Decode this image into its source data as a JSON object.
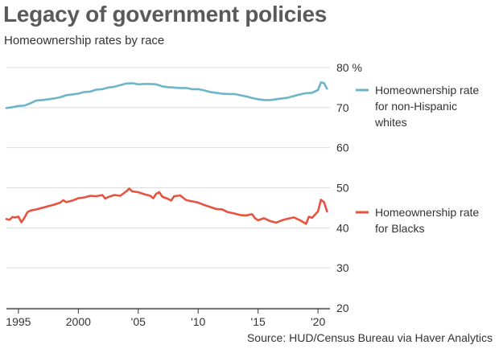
{
  "title": "Legacy of government policies",
  "subtitle": "Homeownership rates by race",
  "source": "Source: HUD/Census Bureau via Haver Analytics",
  "colors": {
    "white_series": "#6db5c9",
    "black_series": "#e8533f",
    "grid": "#dddddd",
    "axis": "#333333"
  },
  "chart_data": {
    "type": "line",
    "title": "Legacy of government policies",
    "subtitle": "Homeownership rates by race",
    "xlabel": "",
    "ylabel": "",
    "y_unit": "%",
    "ylim": [
      20,
      80
    ],
    "xlim": [
      1994,
      2021
    ],
    "yticks": [
      20,
      30,
      40,
      50,
      60,
      70,
      80
    ],
    "ytick_labels": [
      "20",
      "30",
      "40",
      "50",
      "60",
      "70",
      "80 %"
    ],
    "xticks": [
      1995,
      2000,
      2005,
      2010,
      2015,
      2020
    ],
    "xtick_labels": [
      "1995",
      "2000",
      "'05",
      "'10",
      "'15",
      "'20"
    ],
    "grid": "horizontal",
    "legend_placement": "right",
    "series": [
      {
        "name": "Homeownership rate for non-Hispanic whites",
        "legend_lines": [
          "Homeownership rate",
          "for non-Hispanic",
          "whites"
        ],
        "color": "#6db5c9",
        "points": [
          [
            1994.0,
            69.9
          ],
          [
            1994.5,
            70.1
          ],
          [
            1995.0,
            70.4
          ],
          [
            1995.5,
            70.5
          ],
          [
            1996.0,
            71.1
          ],
          [
            1996.5,
            71.8
          ],
          [
            1997.0,
            71.9
          ],
          [
            1997.5,
            72.1
          ],
          [
            1998.0,
            72.3
          ],
          [
            1998.5,
            72.6
          ],
          [
            1999.0,
            73.1
          ],
          [
            1999.5,
            73.3
          ],
          [
            2000.0,
            73.5
          ],
          [
            2000.5,
            73.9
          ],
          [
            2001.0,
            74.0
          ],
          [
            2001.5,
            74.5
          ],
          [
            2002.0,
            74.6
          ],
          [
            2002.5,
            75.0
          ],
          [
            2003.0,
            75.2
          ],
          [
            2003.5,
            75.6
          ],
          [
            2004.0,
            76.0
          ],
          [
            2004.5,
            76.1
          ],
          [
            2005.0,
            75.8
          ],
          [
            2005.5,
            75.9
          ],
          [
            2006.0,
            75.9
          ],
          [
            2006.5,
            75.8
          ],
          [
            2007.0,
            75.3
          ],
          [
            2007.5,
            75.1
          ],
          [
            2008.0,
            75.0
          ],
          [
            2008.5,
            74.9
          ],
          [
            2009.0,
            74.9
          ],
          [
            2009.5,
            74.6
          ],
          [
            2010.0,
            74.6
          ],
          [
            2010.5,
            74.3
          ],
          [
            2011.0,
            73.9
          ],
          [
            2011.5,
            73.7
          ],
          [
            2012.0,
            73.5
          ],
          [
            2012.5,
            73.4
          ],
          [
            2013.0,
            73.4
          ],
          [
            2013.5,
            73.1
          ],
          [
            2014.0,
            72.8
          ],
          [
            2014.5,
            72.4
          ],
          [
            2015.0,
            72.1
          ],
          [
            2015.5,
            71.9
          ],
          [
            2016.0,
            71.9
          ],
          [
            2016.5,
            72.1
          ],
          [
            2017.0,
            72.3
          ],
          [
            2017.5,
            72.5
          ],
          [
            2018.0,
            72.9
          ],
          [
            2018.5,
            73.3
          ],
          [
            2019.0,
            73.6
          ],
          [
            2019.5,
            73.7
          ],
          [
            2020.0,
            74.4
          ],
          [
            2020.25,
            76.3
          ],
          [
            2020.5,
            76.1
          ],
          [
            2020.75,
            74.7
          ]
        ]
      },
      {
        "name": "Homeownership rate for Blacks",
        "legend_lines": [
          "Homeownership rate",
          "for Blacks"
        ],
        "color": "#e8533f",
        "points": [
          [
            1994.0,
            42.2
          ],
          [
            1994.25,
            42.0
          ],
          [
            1994.5,
            42.7
          ],
          [
            1994.75,
            42.6
          ],
          [
            1995.0,
            42.8
          ],
          [
            1995.25,
            41.4
          ],
          [
            1995.5,
            42.5
          ],
          [
            1995.75,
            43.9
          ],
          [
            1996.0,
            44.3
          ],
          [
            1996.5,
            44.6
          ],
          [
            1997.0,
            45.0
          ],
          [
            1997.5,
            45.4
          ],
          [
            1998.0,
            45.8
          ],
          [
            1998.5,
            46.3
          ],
          [
            1998.75,
            46.9
          ],
          [
            1999.0,
            46.4
          ],
          [
            1999.5,
            46.8
          ],
          [
            2000.0,
            47.4
          ],
          [
            2000.5,
            47.6
          ],
          [
            2001.0,
            48.0
          ],
          [
            2001.5,
            47.9
          ],
          [
            2002.0,
            48.2
          ],
          [
            2002.25,
            47.3
          ],
          [
            2002.5,
            47.7
          ],
          [
            2003.0,
            48.2
          ],
          [
            2003.5,
            48.0
          ],
          [
            2004.0,
            49.1
          ],
          [
            2004.25,
            49.8
          ],
          [
            2004.5,
            49.1
          ],
          [
            2005.0,
            48.9
          ],
          [
            2005.5,
            48.4
          ],
          [
            2006.0,
            48.0
          ],
          [
            2006.25,
            47.4
          ],
          [
            2006.5,
            48.5
          ],
          [
            2006.75,
            48.9
          ],
          [
            2007.0,
            47.8
          ],
          [
            2007.5,
            47.2
          ],
          [
            2007.75,
            46.8
          ],
          [
            2008.0,
            47.9
          ],
          [
            2008.5,
            48.1
          ],
          [
            2009.0,
            46.9
          ],
          [
            2009.5,
            46.6
          ],
          [
            2010.0,
            46.3
          ],
          [
            2010.5,
            45.7
          ],
          [
            2011.0,
            45.2
          ],
          [
            2011.5,
            44.7
          ],
          [
            2012.0,
            44.6
          ],
          [
            2012.5,
            43.9
          ],
          [
            2013.0,
            43.6
          ],
          [
            2013.5,
            43.2
          ],
          [
            2014.0,
            43.1
          ],
          [
            2014.5,
            43.4
          ],
          [
            2014.75,
            42.4
          ],
          [
            2015.0,
            41.9
          ],
          [
            2015.5,
            42.4
          ],
          [
            2016.0,
            41.7
          ],
          [
            2016.5,
            41.3
          ],
          [
            2017.0,
            41.9
          ],
          [
            2017.5,
            42.3
          ],
          [
            2018.0,
            42.6
          ],
          [
            2018.5,
            41.9
          ],
          [
            2019.0,
            41.0
          ],
          [
            2019.25,
            42.8
          ],
          [
            2019.5,
            42.5
          ],
          [
            2020.0,
            44.1
          ],
          [
            2020.25,
            47.0
          ],
          [
            2020.5,
            46.4
          ],
          [
            2020.75,
            44.1
          ]
        ]
      }
    ]
  }
}
